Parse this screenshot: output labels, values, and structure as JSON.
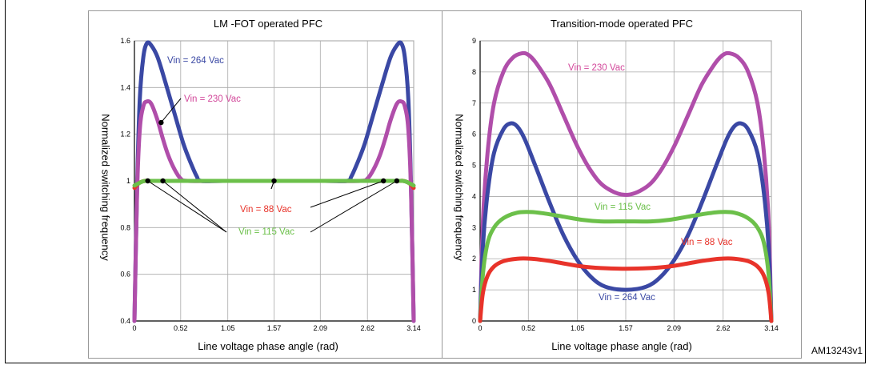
{
  "header_title": "",
  "figure_id": "AM13243v1",
  "chart_data": [
    {
      "type": "line",
      "title": "LM -FOT operated PFC",
      "xlabel": "Line voltage phase angle (rad)",
      "ylabel": "Normalized switching frequency",
      "xlim": [
        0,
        3.14
      ],
      "ylim": [
        0.4,
        1.6
      ],
      "xticks": [
        0,
        0.52,
        1.05,
        1.57,
        2.09,
        2.62,
        3.14
      ],
      "xtick_labels": [
        "0",
        "0.52",
        "1.05",
        "1.57",
        "2.09",
        "2.62",
        "3.14"
      ],
      "yticks": [
        0.4,
        0.6,
        0.8,
        1,
        1.2,
        1.4,
        1.6
      ],
      "ytick_labels": [
        "0.4",
        "0.6",
        "0.8",
        "1",
        "1.2",
        "1.4",
        "1.6"
      ],
      "grid": true,
      "series": [
        {
          "name": "Vin = 264 Vac",
          "color": "#3a48a4",
          "x": [
            0,
            0.03,
            0.06,
            0.1,
            0.14,
            0.19,
            0.26,
            0.35,
            0.45,
            0.55,
            0.63,
            0.7,
            0.75,
            1.0,
            1.57,
            2.14,
            2.39,
            2.44,
            2.51,
            2.59,
            2.69,
            2.79,
            2.88,
            2.95,
            3.0,
            3.04,
            3.08,
            3.11,
            3.14
          ],
          "y": [
            0.4,
            0.97,
            1.35,
            1.53,
            1.59,
            1.58,
            1.53,
            1.42,
            1.29,
            1.16,
            1.08,
            1.02,
            1.0,
            1.0,
            1.0,
            1.0,
            1.0,
            1.02,
            1.08,
            1.16,
            1.29,
            1.42,
            1.53,
            1.58,
            1.59,
            1.53,
            1.35,
            0.97,
            0.4
          ]
        },
        {
          "name": "Vin = 230 Vac",
          "color": "#b04eaa",
          "x": [
            0,
            0.03,
            0.06,
            0.1,
            0.14,
            0.19,
            0.26,
            0.32,
            0.38,
            0.45,
            0.52,
            0.6,
            1.0,
            1.57,
            2.14,
            2.54,
            2.62,
            2.69,
            2.76,
            2.82,
            2.88,
            2.95,
            3.0,
            3.04,
            3.08,
            3.11,
            3.14
          ],
          "y": [
            0.4,
            0.95,
            1.22,
            1.32,
            1.34,
            1.33,
            1.26,
            1.18,
            1.11,
            1.05,
            1.01,
            1.0,
            1.0,
            1.0,
            1.0,
            1.0,
            1.01,
            1.05,
            1.11,
            1.18,
            1.26,
            1.33,
            1.34,
            1.32,
            1.22,
            0.95,
            0.4
          ]
        },
        {
          "name": "Vin = 88 Vac",
          "color": "#e8332a",
          "x": [
            0,
            0.05,
            0.12,
            0.3,
            1.57,
            2.84,
            3.02,
            3.09,
            3.14
          ],
          "y": [
            0.97,
            0.99,
            1.0,
            1.0,
            1.0,
            1.0,
            1.0,
            0.99,
            0.97
          ]
        },
        {
          "name": "Vin = 115 Vac",
          "color": "#6cc04a",
          "x": [
            0,
            0.05,
            0.12,
            0.3,
            1.57,
            2.84,
            3.02,
            3.09,
            3.14
          ],
          "y": [
            0.98,
            0.99,
            1.0,
            1.0,
            1.0,
            1.0,
            1.0,
            0.99,
            0.98
          ]
        }
      ],
      "annotations": [
        {
          "text": "Vin = 264 Vac",
          "color": "#3a48a4"
        },
        {
          "text": "Vin = 230 Vac",
          "color": "#d2479a"
        },
        {
          "text": "Vin = 88 Vac",
          "color": "#e8332a"
        },
        {
          "text": "Vin = 115 Vac",
          "color": "#6cc04a"
        }
      ]
    },
    {
      "type": "line",
      "title": "Transition-mode operated PFC",
      "xlabel": "Line voltage phase angle (rad)",
      "ylabel": "Normalized switching frequency",
      "xlim": [
        0,
        3.14
      ],
      "ylim": [
        0,
        9
      ],
      "xticks": [
        0,
        0.52,
        1.05,
        1.57,
        2.09,
        2.62,
        3.14
      ],
      "xtick_labels": [
        "0",
        "0.52",
        "1.05",
        "1.57",
        "2.09",
        "2.62",
        "3.14"
      ],
      "yticks": [
        0,
        1,
        2,
        3,
        4,
        5,
        6,
        7,
        8,
        9
      ],
      "ytick_labels": [
        "0",
        "1",
        "2",
        "3",
        "4",
        "5",
        "6",
        "7",
        "8",
        "9"
      ],
      "grid": true,
      "series": [
        {
          "name": "Vin = 230 Vac",
          "color": "#b04eaa",
          "x": [
            0,
            0.03,
            0.08,
            0.15,
            0.25,
            0.35,
            0.45,
            0.52,
            0.6,
            0.75,
            0.9,
            1.05,
            1.2,
            1.35,
            1.57,
            1.79,
            1.94,
            2.09,
            2.24,
            2.39,
            2.54,
            2.62,
            2.69,
            2.79,
            2.89,
            2.99,
            3.06,
            3.11,
            3.14
          ],
          "y": [
            0,
            3.2,
            5.4,
            7.0,
            8.0,
            8.45,
            8.6,
            8.55,
            8.3,
            7.6,
            6.6,
            5.6,
            4.8,
            4.3,
            4.05,
            4.3,
            4.8,
            5.6,
            6.6,
            7.6,
            8.3,
            8.55,
            8.6,
            8.45,
            8.0,
            7.0,
            5.4,
            3.2,
            0
          ]
        },
        {
          "name": "Vin = 264 Vac",
          "color": "#3a48a4",
          "x": [
            0,
            0.03,
            0.08,
            0.15,
            0.25,
            0.33,
            0.4,
            0.48,
            0.6,
            0.75,
            0.9,
            1.05,
            1.2,
            1.35,
            1.57,
            1.79,
            1.94,
            2.09,
            2.24,
            2.39,
            2.54,
            2.66,
            2.74,
            2.81,
            2.89,
            2.99,
            3.06,
            3.11,
            3.14
          ],
          "y": [
            0,
            2.4,
            4.1,
            5.4,
            6.15,
            6.35,
            6.25,
            5.85,
            4.95,
            3.8,
            2.75,
            1.95,
            1.4,
            1.1,
            1.0,
            1.1,
            1.4,
            1.95,
            2.75,
            3.8,
            4.95,
            5.85,
            6.25,
            6.35,
            6.15,
            5.4,
            4.1,
            2.4,
            0
          ]
        },
        {
          "name": "Vin = 115 Vac",
          "color": "#6cc04a",
          "x": [
            0,
            0.03,
            0.08,
            0.15,
            0.25,
            0.4,
            0.55,
            0.7,
            0.9,
            1.1,
            1.3,
            1.57,
            1.84,
            2.04,
            2.24,
            2.44,
            2.59,
            2.74,
            2.89,
            2.99,
            3.06,
            3.11,
            3.14
          ],
          "y": [
            0,
            1.5,
            2.5,
            3.0,
            3.3,
            3.48,
            3.5,
            3.45,
            3.35,
            3.25,
            3.2,
            3.2,
            3.2,
            3.25,
            3.35,
            3.45,
            3.5,
            3.48,
            3.3,
            3.0,
            2.5,
            1.5,
            0
          ]
        },
        {
          "name": "Vin = 88 Vac",
          "color": "#e8332a",
          "x": [
            0,
            0.03,
            0.08,
            0.15,
            0.25,
            0.4,
            0.55,
            0.7,
            0.9,
            1.1,
            1.3,
            1.57,
            1.84,
            2.04,
            2.24,
            2.44,
            2.59,
            2.74,
            2.89,
            2.99,
            3.06,
            3.11,
            3.14
          ],
          "y": [
            0,
            0.9,
            1.45,
            1.75,
            1.92,
            2.0,
            2.0,
            1.95,
            1.85,
            1.75,
            1.7,
            1.68,
            1.7,
            1.75,
            1.85,
            1.95,
            2.0,
            2.0,
            1.92,
            1.75,
            1.45,
            0.9,
            0
          ]
        }
      ],
      "annotations": [
        {
          "text": "Vin = 230 Vac",
          "color": "#d2479a"
        },
        {
          "text": "Vin = 115 Vac",
          "color": "#6cc04a"
        },
        {
          "text": "Vin = 88 Vac",
          "color": "#e8332a"
        },
        {
          "text": "Vin = 264 Vac",
          "color": "#3a48a4"
        }
      ]
    }
  ]
}
